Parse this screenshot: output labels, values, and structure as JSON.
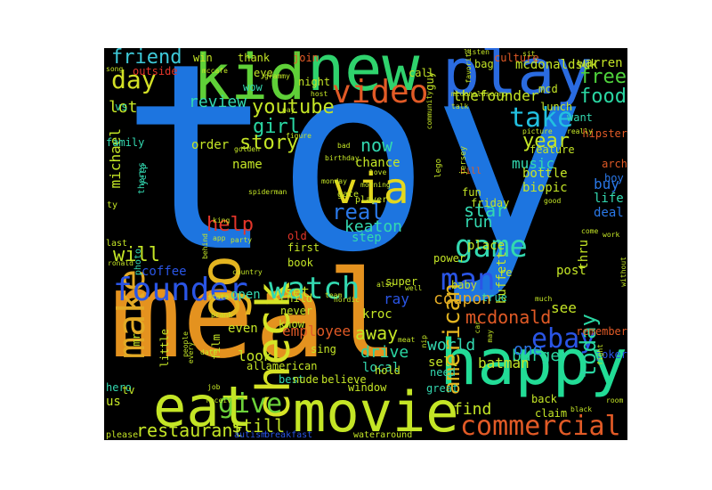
{
  "words": [
    {
      "text": "toy",
      "color": "#1d75e0"
    },
    {
      "text": "meal",
      "color": "#e4921f"
    },
    {
      "text": "new",
      "color": "#2fd26d"
    },
    {
      "text": "play",
      "color": "#2a6be0"
    },
    {
      "text": "kid",
      "color": "#5fd038"
    },
    {
      "text": "happy",
      "color": "#22dc96"
    },
    {
      "text": "movie",
      "color": "#c4e526"
    },
    {
      "text": "eat",
      "color": "#c4e526"
    },
    {
      "text": "go",
      "color": "#e4b520"
    },
    {
      "text": "check",
      "color": "#d6e326"
    },
    {
      "text": "via",
      "color": "#e4d81e"
    },
    {
      "text": "video",
      "color": "#e15a26"
    },
    {
      "text": "make",
      "color": "#e3aa25"
    },
    {
      "text": "founder",
      "color": "#2a55e6"
    },
    {
      "text": "watch",
      "color": "#33d8b0"
    },
    {
      "text": "game",
      "color": "#33d8b0"
    },
    {
      "text": "man",
      "color": "#2a55e6"
    },
    {
      "text": "commercial",
      "color": "#e15a26"
    },
    {
      "text": "ebay",
      "color": "#2a55e6"
    },
    {
      "text": "take",
      "color": "#22c0e0"
    },
    {
      "text": "day",
      "color": "#d3e026"
    },
    {
      "text": "give",
      "color": "#6dd33a"
    },
    {
      "text": "friend",
      "color": "#3ec9d8"
    },
    {
      "text": "today",
      "color": "#2ad6a2"
    },
    {
      "text": "youtube",
      "color": "#c4e526"
    },
    {
      "text": "girl",
      "color": "#2ad6a2"
    },
    {
      "text": "story",
      "color": "#c4e526"
    },
    {
      "text": "american",
      "color": "#e4b520"
    },
    {
      "text": "real",
      "color": "#2a78e8"
    },
    {
      "text": "help",
      "color": "#e3352a"
    },
    {
      "text": "year",
      "color": "#c4e526"
    },
    {
      "text": "free",
      "color": "#4fd23c"
    },
    {
      "text": "food",
      "color": "#2ad6a2"
    },
    {
      "text": "will",
      "color": "#c4e526"
    },
    {
      "text": "restaurant",
      "color": "#c4e526"
    },
    {
      "text": "still",
      "color": "#c4e526"
    },
    {
      "text": "lot",
      "color": "#c4e526"
    },
    {
      "text": "review",
      "color": "#33d8b0"
    },
    {
      "text": "now",
      "color": "#33d8b0"
    },
    {
      "text": "keaton",
      "color": "#33d8b0"
    },
    {
      "text": "star",
      "color": "#33d8b0"
    },
    {
      "text": "run",
      "color": "#33d8b0"
    },
    {
      "text": "coupon",
      "color": "#e3aa25"
    },
    {
      "text": "mcdonald",
      "color": "#e15a26"
    },
    {
      "text": "burger",
      "color": "#2ad6a2"
    },
    {
      "text": "drive",
      "color": "#2ad6a2"
    },
    {
      "text": "away",
      "color": "#c4e526"
    },
    {
      "text": "world",
      "color": "#33d8b0"
    },
    {
      "text": "one",
      "color": "#2a78e8"
    },
    {
      "text": "find",
      "color": "#c4e526"
    },
    {
      "text": "thefounder",
      "color": "#c4e526"
    },
    {
      "text": "mcdonaldsuk",
      "color": "#c4e526"
    },
    {
      "text": "warren",
      "color": "#c4e526"
    },
    {
      "text": "music",
      "color": "#33d8b0"
    },
    {
      "text": "buy",
      "color": "#2a78e8"
    },
    {
      "text": "set",
      "color": "#c4e526"
    },
    {
      "text": "ray",
      "color": "#2a55e6"
    },
    {
      "text": "see",
      "color": "#c4e526"
    },
    {
      "text": "look",
      "color": "#c4e526"
    },
    {
      "text": "batman",
      "color": "#c4e526"
    },
    {
      "text": "employee",
      "color": "#e15a26"
    },
    {
      "text": "michael",
      "color": "#c4e526"
    },
    {
      "text": "buffett",
      "color": "#c4e526"
    },
    {
      "text": "coffee",
      "color": "#2a55e6"
    },
    {
      "text": "open",
      "color": "#33d8b0"
    },
    {
      "text": "order",
      "color": "#c4e526"
    },
    {
      "text": "name",
      "color": "#c4e526"
    },
    {
      "text": "chance",
      "color": "#c4e526"
    },
    {
      "text": "local",
      "color": "#33d8b0"
    },
    {
      "text": "sell",
      "color": "#c4e526"
    },
    {
      "text": "us",
      "color": "#c4e526"
    },
    {
      "text": "even",
      "color": "#c4e526"
    },
    {
      "text": "kroc",
      "color": "#c4e526"
    },
    {
      "text": "step",
      "color": "#33d8b0"
    },
    {
      "text": "place",
      "color": "#c4e526"
    },
    {
      "text": "thru",
      "color": "#c4e526"
    },
    {
      "text": "deal",
      "color": "#2a78e8"
    },
    {
      "text": "life",
      "color": "#33d8b0"
    },
    {
      "text": "post",
      "color": "#c4e526"
    },
    {
      "text": "bottle",
      "color": "#c4e526"
    },
    {
      "text": "biopic",
      "color": "#c4e526"
    },
    {
      "text": "feature",
      "color": "#c4e526"
    },
    {
      "text": "lunch",
      "color": "#c4e526"
    },
    {
      "text": "want",
      "color": "#33d8b0"
    },
    {
      "text": "win",
      "color": "#c4e526"
    },
    {
      "text": "thank",
      "color": "#c4e526"
    },
    {
      "text": "join",
      "color": "#e15a26"
    },
    {
      "text": "culture",
      "color": "#e15a26"
    },
    {
      "text": "bag",
      "color": "#c4e526"
    },
    {
      "text": "outside",
      "color": "#e3352a"
    },
    {
      "text": "eye",
      "color": "#c4e526"
    },
    {
      "text": "night",
      "color": "#c4e526"
    },
    {
      "text": "call",
      "color": "#c4e526"
    },
    {
      "text": "guy",
      "color": "#c4e526"
    },
    {
      "text": "mcd",
      "color": "#c4e526"
    },
    {
      "text": "hipster",
      "color": "#e15a26"
    },
    {
      "text": "family",
      "color": "#33d8b0"
    },
    {
      "text": "vs",
      "color": "#33d8b0"
    },
    {
      "text": "wow",
      "color": "#33d8b0"
    },
    {
      "text": "first",
      "color": "#c4e526"
    },
    {
      "text": "book",
      "color": "#c4e526"
    },
    {
      "text": "old",
      "color": "#e3352a"
    },
    {
      "text": "power",
      "color": "#c4e526"
    },
    {
      "text": "fun",
      "color": "#c4e526"
    },
    {
      "text": "friday",
      "color": "#c4e526"
    },
    {
      "text": "bill",
      "color": "#e15a26"
    },
    {
      "text": "arch",
      "color": "#e15a26"
    },
    {
      "text": "boy",
      "color": "#2a78e8"
    },
    {
      "text": "re",
      "color": "#c4e526"
    },
    {
      "text": "super",
      "color": "#c4e526"
    },
    {
      "text": "baby",
      "color": "#c4e526"
    },
    {
      "text": "true",
      "color": "#33d8b0"
    },
    {
      "text": "remember",
      "color": "#e15a26"
    },
    {
      "text": "joker",
      "color": "#2a55e6"
    },
    {
      "text": "hero",
      "color": "#33d8b0"
    },
    {
      "text": "tv",
      "color": "#c4e526"
    },
    {
      "text": "mr",
      "color": "#c4e526"
    },
    {
      "text": "film",
      "color": "#c4e526"
    },
    {
      "text": "little",
      "color": "#c4e526"
    },
    {
      "text": "child",
      "color": "#c4e526"
    },
    {
      "text": "never",
      "color": "#c4e526"
    },
    {
      "text": "know",
      "color": "#c4e526"
    },
    {
      "text": "allamerican",
      "color": "#c4e526"
    },
    {
      "text": "sing",
      "color": "#c4e526"
    },
    {
      "text": "best",
      "color": "#33d8b0"
    },
    {
      "text": "nude",
      "color": "#c4e526"
    },
    {
      "text": "believe",
      "color": "#c4e526"
    },
    {
      "text": "window",
      "color": "#c4e526"
    },
    {
      "text": "hold",
      "color": "#c4e526"
    },
    {
      "text": "need",
      "color": "#33d8b0"
    },
    {
      "text": "great",
      "color": "#33d8b0"
    },
    {
      "text": "back",
      "color": "#c4e526"
    },
    {
      "text": "claim",
      "color": "#c4e526"
    },
    {
      "text": "please",
      "color": "#c4e526"
    },
    {
      "text": "autism",
      "color": "#2a55e6"
    },
    {
      "text": "breakfast",
      "color": "#2a55e6"
    },
    {
      "text": "wateraround",
      "color": "#c4e526"
    },
    {
      "text": "last",
      "color": "#c4e526"
    },
    {
      "text": "photo",
      "color": "#33d8b0"
    },
    {
      "text": "yelp",
      "color": "#33d8b0"
    },
    {
      "text": "theres",
      "color": "#33d8b0"
    },
    {
      "text": "ty",
      "color": "#c4e526"
    },
    {
      "text": "gate",
      "color": "#c4e526"
    },
    {
      "text": "player",
      "color": "#c4e526"
    },
    {
      "text": "lego",
      "color": "#c4e526"
    },
    {
      "text": "jersey",
      "color": "#c4e526"
    },
    {
      "text": "picture",
      "color": "#c4e526"
    },
    {
      "text": "really",
      "color": "#c4e526"
    },
    {
      "text": "good",
      "color": "#c4e526"
    },
    {
      "text": "black",
      "color": "#c4e526"
    },
    {
      "text": "room",
      "color": "#c4e526"
    },
    {
      "text": "love",
      "color": "#c4e526"
    },
    {
      "text": "bad",
      "color": "#c4e526"
    },
    {
      "text": "song",
      "color": "#c4e526"
    },
    {
      "text": "mccafe",
      "color": "#c4e526"
    },
    {
      "text": "grammy",
      "color": "#c4e526"
    },
    {
      "text": "host",
      "color": "#c4e526"
    },
    {
      "text": "listen",
      "color": "#c4e526"
    },
    {
      "text": "favorite",
      "color": "#c4e526"
    },
    {
      "text": "community",
      "color": "#c4e526"
    },
    {
      "text": "mcdonaldscorp",
      "color": "#c4e526"
    },
    {
      "text": "talk",
      "color": "#c4e526"
    },
    {
      "text": "pay",
      "color": "#c4e526"
    },
    {
      "text": "figure",
      "color": "#c4e526"
    },
    {
      "text": "golden",
      "color": "#c4e526"
    },
    {
      "text": "birthday",
      "color": "#c4e526"
    },
    {
      "text": "monday",
      "color": "#c4e526"
    },
    {
      "text": "morning",
      "color": "#c4e526"
    },
    {
      "text": "spiderman",
      "color": "#c4e526"
    },
    {
      "text": "king",
      "color": "#c4e526"
    },
    {
      "text": "app",
      "color": "#c4e526"
    },
    {
      "text": "party",
      "color": "#c4e526"
    },
    {
      "text": "ronald",
      "color": "#c4e526"
    },
    {
      "text": "country",
      "color": "#c4e526"
    },
    {
      "text": "state",
      "color": "#c4e526"
    },
    {
      "text": "prank",
      "color": "#c4e526"
    },
    {
      "text": "job",
      "color": "#c4e526"
    },
    {
      "text": "receive",
      "color": "#c4e526"
    },
    {
      "text": "team",
      "color": "#c4e526"
    },
    {
      "text": "nordic",
      "color": "#c4e526"
    },
    {
      "text": "also",
      "color": "#c4e526"
    },
    {
      "text": "well",
      "color": "#c4e526"
    },
    {
      "text": "much",
      "color": "#c4e526"
    },
    {
      "text": "without",
      "color": "#c4e526"
    },
    {
      "text": "work",
      "color": "#c4e526"
    },
    {
      "text": "come",
      "color": "#c4e526"
    },
    {
      "text": "nip",
      "color": "#c4e526"
    },
    {
      "text": "car",
      "color": "#c4e526"
    },
    {
      "text": "may",
      "color": "#c4e526"
    },
    {
      "text": "meat",
      "color": "#c4e526"
    },
    {
      "text": "sit",
      "color": "#c4e526"
    },
    {
      "text": "fight",
      "color": "#c4e526"
    },
    {
      "text": "date",
      "color": "#c4e526"
    },
    {
      "text": "every",
      "color": "#c4e526"
    },
    {
      "text": "people",
      "color": "#c4e526"
    },
    {
      "text": "behind",
      "color": "#c4e526"
    }
  ]
}
